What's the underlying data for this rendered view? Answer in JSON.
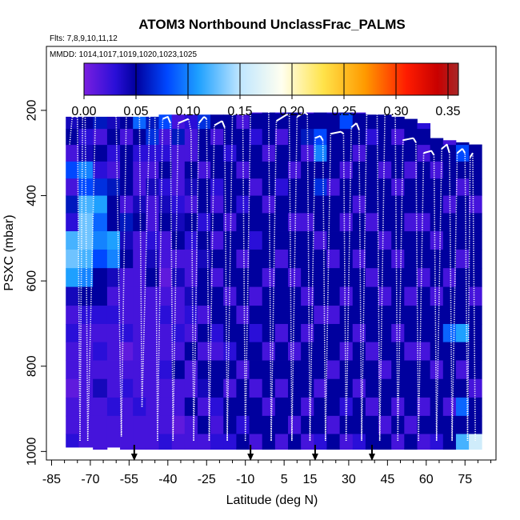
{
  "chart_data": {
    "type": "heatmap",
    "title": "ATOM3 Northbound UnclassFrac_PALMS",
    "flights_label": "Flts: 7,8,9,10,11,12",
    "dates_label": "MMDD: 1014,1017,1019,1020,1023,1025",
    "xlabel": "Latitude (deg N)",
    "ylabel": "PSXC (mbar)",
    "xlim": [
      -87,
      87
    ],
    "ylim": [
      1020,
      50
    ],
    "x_ticks": [
      -85,
      -70,
      -55,
      -40,
      -25,
      -10,
      5,
      15,
      30,
      45,
      60,
      75
    ],
    "x_tick_labels": [
      "-85",
      "-70",
      "-55",
      "-40",
      "-25",
      "-10",
      "5",
      "15",
      "30",
      "45",
      "60",
      "75"
    ],
    "y_ticks": [
      200,
      400,
      600,
      800,
      1000
    ],
    "y_tick_labels": [
      "200",
      "400",
      "600",
      "800",
      "1000"
    ],
    "colorbar": {
      "min": 0.0,
      "max": 0.36,
      "ticks": [
        0.0,
        0.05,
        0.1,
        0.15,
        0.2,
        0.25,
        0.3,
        0.35
      ],
      "tick_labels": [
        "0.00",
        "0.05",
        "0.10",
        "0.15",
        "0.20",
        "0.25",
        "0.30",
        "0.35"
      ],
      "stops": [
        {
          "v": 0.0,
          "color": "#7a1fe0"
        },
        {
          "v": 0.03,
          "color": "#2a0fd8"
        },
        {
          "v": 0.05,
          "color": "#00009e"
        },
        {
          "v": 0.08,
          "color": "#0048ff"
        },
        {
          "v": 0.11,
          "color": "#1ea0ff"
        },
        {
          "v": 0.15,
          "color": "#bfe6ff"
        },
        {
          "v": 0.19,
          "color": "#fffff0"
        },
        {
          "v": 0.23,
          "color": "#ffe34a"
        },
        {
          "v": 0.27,
          "color": "#ff9a00"
        },
        {
          "v": 0.31,
          "color": "#ff1c00"
        },
        {
          "v": 0.34,
          "color": "#c80000"
        },
        {
          "v": 0.36,
          "color": "#a82828"
        }
      ]
    },
    "profile_color": "#ffffff",
    "arrows_lat": [
      -53,
      -8,
      17,
      39
    ],
    "lat_band_centers": [
      -77,
      -72,
      -66,
      -61,
      -56,
      -51,
      -46,
      -41,
      -36,
      -31,
      -26,
      -21,
      -16,
      -11,
      -6,
      -1,
      4,
      9,
      14,
      19,
      24,
      29,
      34,
      39,
      44,
      49,
      54,
      59,
      64,
      69,
      74,
      79
    ],
    "pressure_levels": [
      190,
      225,
      262,
      300,
      340,
      380,
      420,
      462,
      505,
      548,
      592,
      636,
      680,
      722,
      765,
      808,
      852,
      895,
      938,
      980
    ],
    "pressure_ranges": [
      [
        -77,
        215,
        990
      ],
      [
        -72,
        215,
        990
      ],
      [
        -66,
        215,
        995
      ],
      [
        -61,
        215,
        990
      ],
      [
        -56,
        215,
        995
      ],
      [
        -51,
        215,
        995
      ],
      [
        -46,
        215,
        995
      ],
      [
        -41,
        210,
        995
      ],
      [
        -36,
        210,
        995
      ],
      [
        -31,
        210,
        995
      ],
      [
        -26,
        210,
        995
      ],
      [
        -21,
        210,
        995
      ],
      [
        -16,
        210,
        995
      ],
      [
        -11,
        210,
        995
      ],
      [
        -6,
        205,
        995
      ],
      [
        -1,
        205,
        995
      ],
      [
        4,
        205,
        995
      ],
      [
        9,
        205,
        995
      ],
      [
        14,
        205,
        995
      ],
      [
        19,
        205,
        995
      ],
      [
        24,
        205,
        995
      ],
      [
        29,
        205,
        995
      ],
      [
        34,
        205,
        995
      ],
      [
        39,
        210,
        995
      ],
      [
        44,
        210,
        995
      ],
      [
        49,
        215,
        995
      ],
      [
        54,
        220,
        995
      ],
      [
        59,
        230,
        995
      ],
      [
        64,
        265,
        995
      ],
      [
        69,
        270,
        995
      ],
      [
        74,
        275,
        995
      ],
      [
        79,
        280,
        995
      ]
    ],
    "values": [
      [
        0.03,
        0.04,
        0.05,
        0.02,
        0.08,
        0.02,
        0.06,
        0.03,
        0.12,
        0.13,
        0.11,
        0.04,
        0.02,
        0.03,
        0.02,
        0.02,
        0.01,
        0.02,
        0.02,
        0.03
      ],
      [
        0.02,
        0.05,
        0.03,
        0.04,
        0.1,
        0.08,
        0.12,
        0.13,
        0.13,
        0.12,
        0.1,
        0.05,
        0.03,
        0.02,
        0.02,
        0.02,
        0.02,
        0.02,
        0.02,
        0.02
      ],
      [
        0.04,
        0.06,
        0.02,
        0.05,
        0.03,
        0.07,
        0.11,
        0.09,
        0.1,
        0.08,
        0.05,
        0.05,
        0.03,
        0.02,
        0.03,
        0.02,
        0.04,
        0.02,
        0.02,
        0.02
      ],
      [
        0.05,
        0.04,
        0.05,
        0.03,
        0.02,
        0.06,
        0.05,
        0.05,
        0.11,
        0.1,
        0.04,
        0.02,
        0.03,
        0.02,
        0.02,
        0.02,
        0.02,
        0.03,
        0.02,
        0.02
      ],
      [
        0.1,
        0.05,
        0.02,
        0.05,
        0.05,
        0.05,
        0.02,
        0.06,
        0.04,
        0.05,
        0.02,
        0.02,
        0.02,
        0.03,
        0.01,
        0.02,
        0.03,
        0.02,
        0.02,
        0.02
      ],
      [
        0.04,
        0.09,
        0.05,
        0.03,
        0.02,
        0.02,
        0.04,
        0.05,
        0.02,
        0.02,
        0.02,
        0.02,
        0.02,
        0.02,
        0.02,
        0.02,
        0.02,
        0.03,
        0.02,
        0.02
      ],
      [
        0.02,
        0.06,
        0.07,
        0.03,
        0.02,
        0.04,
        0.02,
        0.02,
        0.03,
        0.04,
        0.05,
        0.02,
        0.02,
        0.02,
        0.02,
        0.02,
        0.02,
        0.02,
        0.02,
        0.02
      ],
      [
        0.05,
        0.08,
        0.02,
        0.03,
        0.05,
        0.03,
        0.04,
        0.05,
        0.02,
        0.02,
        0.01,
        0.02,
        0.03,
        0.02,
        0.02,
        0.03,
        0.02,
        0.02,
        0.02,
        0.03
      ],
      [
        0.03,
        0.02,
        0.06,
        0.02,
        0.02,
        0.02,
        0.03,
        0.04,
        0.05,
        0.02,
        0.04,
        0.02,
        0.02,
        0.03,
        0.02,
        0.05,
        0.02,
        0.02,
        0.01,
        0.02
      ],
      [
        0.05,
        0.03,
        0.02,
        0.02,
        0.05,
        0.04,
        0.02,
        0.05,
        0.03,
        0.02,
        0.02,
        0.04,
        0.03,
        0.02,
        0.05,
        0.02,
        0.02,
        0.05,
        0.02,
        0.02
      ],
      [
        0.06,
        0.07,
        0.05,
        0.05,
        0.02,
        0.05,
        0.05,
        0.03,
        0.05,
        0.04,
        0.05,
        0.05,
        0.02,
        0.05,
        0.02,
        0.05,
        0.04,
        0.02,
        0.05,
        0.02
      ],
      [
        0.03,
        0.05,
        0.02,
        0.05,
        0.05,
        0.03,
        0.02,
        0.05,
        0.02,
        0.05,
        0.02,
        0.05,
        0.05,
        0.03,
        0.02,
        0.05,
        0.05,
        0.03,
        0.02,
        0.03
      ],
      [
        0.06,
        0.05,
        0.05,
        0.03,
        0.05,
        0.05,
        0.05,
        0.02,
        0.05,
        0.05,
        0.05,
        0.02,
        0.05,
        0.05,
        0.03,
        0.05,
        0.02,
        0.05,
        0.05,
        0.03
      ],
      [
        0.05,
        0.02,
        0.05,
        0.05,
        0.02,
        0.05,
        0.03,
        0.05,
        0.05,
        0.02,
        0.05,
        0.05,
        0.02,
        0.05,
        0.05,
        0.02,
        0.05,
        0.05,
        0.03,
        0.05
      ],
      [
        0.02,
        0.05,
        0.03,
        0.05,
        0.05,
        0.02,
        0.05,
        0.05,
        0.03,
        0.05,
        0.05,
        0.02,
        0.05,
        0.03,
        0.05,
        0.05,
        0.02,
        0.05,
        0.05,
        0.02
      ],
      [
        0.05,
        0.05,
        0.05,
        0.02,
        0.05,
        0.05,
        0.02,
        0.05,
        0.05,
        0.05,
        0.02,
        0.05,
        0.05,
        0.05,
        0.02,
        0.05,
        0.05,
        0.02,
        0.05,
        0.05
      ],
      [
        0.03,
        0.05,
        0.02,
        0.05,
        0.05,
        0.03,
        0.05,
        0.05,
        0.05,
        0.02,
        0.05,
        0.05,
        0.05,
        0.02,
        0.05,
        0.05,
        0.02,
        0.05,
        0.05,
        0.02
      ],
      [
        0.05,
        0.05,
        0.05,
        0.05,
        0.02,
        0.05,
        0.05,
        0.02,
        0.05,
        0.05,
        0.02,
        0.05,
        0.05,
        0.05,
        0.02,
        0.05,
        0.05,
        0.05,
        0.02,
        0.05
      ],
      [
        0.02,
        0.05,
        0.06,
        0.02,
        0.05,
        0.05,
        0.05,
        0.02,
        0.05,
        0.05,
        0.05,
        0.02,
        0.05,
        0.02,
        0.05,
        0.05,
        0.05,
        0.02,
        0.05,
        0.02
      ],
      [
        0.05,
        0.05,
        0.08,
        0.1,
        0.05,
        0.07,
        0.05,
        0.05,
        0.02,
        0.05,
        0.05,
        0.05,
        0.02,
        0.05,
        0.05,
        0.05,
        0.02,
        0.05,
        0.05,
        0.03
      ],
      [
        0.03,
        0.05,
        0.05,
        0.05,
        0.05,
        0.02,
        0.05,
        0.05,
        0.05,
        0.02,
        0.05,
        0.05,
        0.02,
        0.05,
        0.05,
        0.02,
        0.05,
        0.05,
        0.02,
        0.05
      ],
      [
        0.05,
        0.08,
        0.05,
        0.05,
        0.02,
        0.05,
        0.05,
        0.02,
        0.05,
        0.05,
        0.05,
        0.02,
        0.05,
        0.05,
        0.02,
        0.05,
        0.05,
        0.03,
        0.05,
        0.02
      ],
      [
        0.02,
        0.05,
        0.05,
        0.02,
        0.05,
        0.05,
        0.02,
        0.05,
        0.05,
        0.02,
        0.05,
        0.05,
        0.05,
        0.02,
        0.05,
        0.05,
        0.02,
        0.05,
        0.05,
        0.03
      ],
      [
        0.05,
        0.05,
        0.03,
        0.05,
        0.05,
        0.05,
        0.05,
        0.02,
        0.05,
        0.05,
        0.02,
        0.05,
        0.05,
        0.05,
        0.02,
        0.05,
        0.05,
        0.02,
        0.05,
        0.05
      ],
      [
        0.03,
        0.05,
        0.05,
        0.05,
        0.02,
        0.05,
        0.05,
        0.05,
        0.02,
        0.05,
        0.05,
        0.02,
        0.05,
        0.05,
        0.05,
        0.02,
        0.05,
        0.05,
        0.02,
        0.05
      ],
      [
        0.05,
        0.05,
        0.02,
        0.05,
        0.05,
        0.02,
        0.05,
        0.05,
        0.05,
        0.02,
        0.05,
        0.05,
        0.05,
        0.02,
        0.05,
        0.05,
        0.05,
        0.02,
        0.05,
        0.02
      ],
      [
        0.02,
        0.05,
        0.05,
        0.05,
        0.02,
        0.05,
        0.05,
        0.02,
        0.05,
        0.05,
        0.05,
        0.02,
        0.05,
        0.05,
        0.02,
        0.05,
        0.05,
        0.05,
        0.02,
        0.05
      ],
      [
        0.05,
        0.03,
        0.05,
        0.02,
        0.05,
        0.05,
        0.05,
        0.02,
        0.05,
        0.05,
        0.02,
        0.05,
        0.05,
        0.05,
        0.02,
        0.05,
        0.05,
        0.02,
        0.05,
        0.02
      ],
      [
        0.03,
        0.05,
        0.05,
        0.05,
        0.02,
        0.05,
        0.05,
        0.05,
        0.02,
        0.05,
        0.05,
        0.02,
        0.05,
        0.05,
        0.05,
        0.02,
        0.05,
        0.05,
        0.05,
        0.03
      ],
      [
        0.05,
        0.05,
        0.02,
        0.05,
        0.05,
        0.05,
        0.02,
        0.05,
        0.05,
        0.05,
        0.02,
        0.05,
        0.05,
        0.09,
        0.05,
        0.05,
        0.05,
        0.02,
        0.05,
        0.05
      ],
      [
        0.02,
        0.05,
        0.05,
        0.08,
        0.05,
        0.02,
        0.05,
        0.05,
        0.05,
        0.02,
        0.05,
        0.05,
        0.05,
        0.11,
        0.05,
        0.02,
        0.05,
        0.09,
        0.05,
        0.12
      ],
      [
        0.05,
        0.02,
        0.05,
        0.05,
        0.05,
        0.05,
        0.02,
        0.05,
        0.05,
        0.05,
        0.05,
        0.02,
        0.05,
        0.05,
        0.05,
        0.05,
        0.02,
        0.05,
        0.05,
        0.16
      ]
    ],
    "profiles": [
      {
        "lat": [
          -78,
          -77,
          -76,
          -75,
          -74
        ],
        "p": [
          280,
          215,
          213,
          215,
          975
        ]
      },
      {
        "lat": [
          -74,
          -73,
          -72,
          -71
        ],
        "p": [
          975,
          215,
          212,
          975
        ]
      },
      {
        "lat": [
          -71,
          -68,
          -61,
          -60,
          -58
        ],
        "p": [
          975,
          210,
          210,
          215,
          965
        ]
      },
      {
        "lat": [
          -58,
          -56,
          -52,
          -51,
          -50
        ],
        "p": [
          965,
          180,
          180,
          200,
          895
        ]
      },
      {
        "lat": [
          -50,
          -47,
          -46,
          -45,
          -44
        ],
        "p": [
          895,
          210,
          208,
          212,
          975
        ]
      },
      {
        "lat": [
          -44,
          -42,
          -40,
          -39,
          -38
        ],
        "p": [
          975,
          220,
          215,
          230,
          975
        ]
      },
      {
        "lat": [
          -38,
          -36,
          -32,
          -31,
          -30
        ],
        "p": [
          975,
          230,
          220,
          250,
          975
        ]
      },
      {
        "lat": [
          -30,
          -28,
          -26,
          -25,
          -24
        ],
        "p": [
          975,
          230,
          215,
          220,
          975
        ]
      },
      {
        "lat": [
          -24,
          -22,
          -19,
          -18,
          -17
        ],
        "p": [
          975,
          235,
          225,
          240,
          975
        ]
      },
      {
        "lat": [
          -17,
          -15,
          -12,
          -11,
          -10
        ],
        "p": [
          975,
          210,
          205,
          210,
          975
        ]
      },
      {
        "lat": [
          -10,
          -8,
          -3,
          -1,
          0
        ],
        "p": [
          975,
          205,
          180,
          180,
          975
        ]
      },
      {
        "lat": [
          0,
          2,
          6,
          7,
          8
        ],
        "p": [
          975,
          225,
          210,
          210,
          975
        ]
      },
      {
        "lat": [
          8,
          10,
          13,
          14,
          15
        ],
        "p": [
          975,
          215,
          205,
          210,
          975
        ]
      },
      {
        "lat": [
          15,
          17,
          19,
          20,
          21
        ],
        "p": [
          975,
          265,
          260,
          270,
          975
        ]
      },
      {
        "lat": [
          21,
          23,
          27,
          28,
          29
        ],
        "p": [
          975,
          255,
          250,
          255,
          975
        ]
      },
      {
        "lat": [
          29,
          31,
          33,
          34,
          35
        ],
        "p": [
          975,
          240,
          230,
          245,
          975
        ]
      },
      {
        "lat": [
          35,
          37,
          40,
          41,
          42
        ],
        "p": [
          975,
          200,
          195,
          205,
          975
        ]
      },
      {
        "lat": [
          42,
          44,
          47,
          48,
          49
        ],
        "p": [
          975,
          210,
          200,
          210,
          975
        ]
      },
      {
        "lat": [
          49,
          51,
          55,
          56,
          57
        ],
        "p": [
          975,
          270,
          265,
          275,
          975
        ]
      },
      {
        "lat": [
          57,
          59,
          62,
          63,
          64
        ],
        "p": [
          975,
          300,
          295,
          305,
          975
        ]
      },
      {
        "lat": [
          64,
          66,
          68,
          69,
          70
        ],
        "p": [
          975,
          290,
          280,
          300,
          975
        ]
      },
      {
        "lat": [
          70,
          72,
          74,
          75,
          76
        ],
        "p": [
          975,
          300,
          290,
          300,
          975
        ]
      },
      {
        "lat": [
          76,
          77,
          78,
          79
        ],
        "p": [
          975,
          310,
          300,
          975
        ]
      }
    ]
  }
}
